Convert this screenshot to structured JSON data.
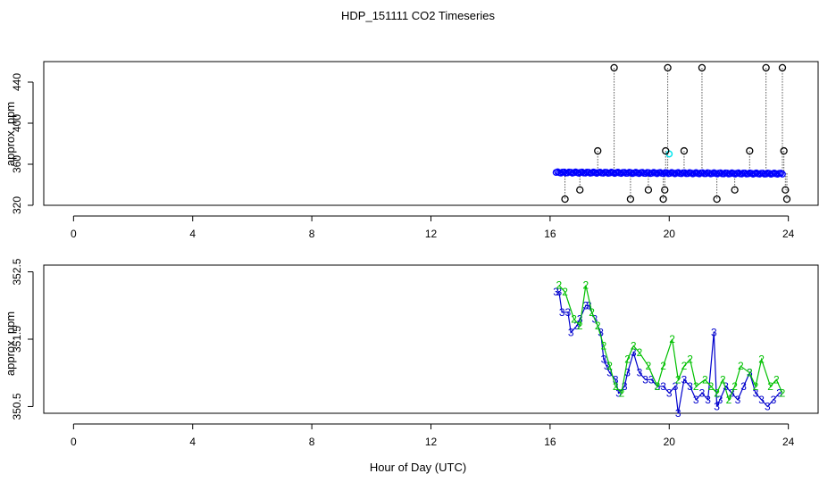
{
  "title": "HDP_151111  CO2 Timeseries",
  "xlabel": "Hour of Day (UTC)",
  "chart_data": [
    {
      "type": "scatter",
      "ylabel": "approx. ppm",
      "xlim": [
        -1,
        25
      ],
      "ylim": [
        320,
        460
      ],
      "x_ticks": [
        0,
        4,
        8,
        12,
        16,
        20,
        24
      ],
      "y_ticks": [
        320,
        360,
        400,
        440
      ],
      "colors": {
        "main": "#0000ff",
        "highlight": "#00e5ee",
        "outlier": "#000000",
        "outlier_line": "#000000"
      },
      "main_series": {
        "x_start": 16.2,
        "x_end": 23.8,
        "y_start": 352,
        "y_end": 350.8
      },
      "outliers": [
        {
          "x": 16.5,
          "y": 326
        },
        {
          "x": 17.0,
          "y": 335
        },
        {
          "x": 17.6,
          "y": 373
        },
        {
          "x": 18.15,
          "y": 454
        },
        {
          "x": 18.7,
          "y": 326
        },
        {
          "x": 19.3,
          "y": 335
        },
        {
          "x": 19.8,
          "y": 326
        },
        {
          "x": 19.85,
          "y": 335
        },
        {
          "x": 19.88,
          "y": 373
        },
        {
          "x": 19.95,
          "y": 454
        },
        {
          "x": 20.5,
          "y": 373
        },
        {
          "x": 21.1,
          "y": 454
        },
        {
          "x": 21.6,
          "y": 326
        },
        {
          "x": 22.2,
          "y": 335
        },
        {
          "x": 22.7,
          "y": 373
        },
        {
          "x": 23.25,
          "y": 454
        },
        {
          "x": 23.8,
          "y": 454
        },
        {
          "x": 23.85,
          "y": 373
        },
        {
          "x": 23.9,
          "y": 335
        },
        {
          "x": 23.95,
          "y": 326
        }
      ],
      "highlight_points": [
        {
          "x": 20.0,
          "y": 370
        }
      ]
    },
    {
      "type": "line",
      "ylabel": "approx. ppm",
      "xlim": [
        -1,
        25
      ],
      "ylim": [
        350.4,
        352.6
      ],
      "x_ticks": [
        0,
        4,
        8,
        12,
        16,
        20,
        24
      ],
      "y_ticks": [
        350.5,
        351.5,
        352.5
      ],
      "series": [
        {
          "marker": "3",
          "color": "#0000cd",
          "points": [
            [
              16.2,
              352.2
            ],
            [
              16.3,
              352.2
            ],
            [
              16.4,
              351.9
            ],
            [
              16.6,
              351.9
            ],
            [
              16.7,
              351.6
            ],
            [
              16.9,
              351.7
            ],
            [
              17.0,
              351.8
            ],
            [
              17.2,
              352.0
            ],
            [
              17.3,
              352.0
            ],
            [
              17.5,
              351.8
            ],
            [
              17.7,
              351.6
            ],
            [
              17.8,
              351.2
            ],
            [
              17.9,
              351.1
            ],
            [
              18.0,
              351.0
            ],
            [
              18.2,
              350.9
            ],
            [
              18.3,
              350.7
            ],
            [
              18.5,
              350.8
            ],
            [
              18.6,
              351.0
            ],
            [
              18.8,
              351.3
            ],
            [
              19.0,
              351.0
            ],
            [
              19.2,
              350.9
            ],
            [
              19.4,
              350.9
            ],
            [
              19.6,
              350.8
            ],
            [
              19.8,
              350.8
            ],
            [
              20.0,
              350.7
            ],
            [
              20.2,
              350.8
            ],
            [
              20.3,
              350.4
            ],
            [
              20.5,
              350.9
            ],
            [
              20.7,
              350.8
            ],
            [
              20.9,
              350.6
            ],
            [
              21.1,
              350.7
            ],
            [
              21.3,
              350.6
            ],
            [
              21.5,
              351.6
            ],
            [
              21.6,
              350.5
            ],
            [
              21.7,
              350.6
            ],
            [
              21.9,
              350.8
            ],
            [
              22.1,
              350.7
            ],
            [
              22.3,
              350.6
            ],
            [
              22.5,
              350.8
            ],
            [
              22.7,
              351.0
            ],
            [
              22.9,
              350.7
            ],
            [
              23.1,
              350.6
            ],
            [
              23.3,
              350.5
            ],
            [
              23.5,
              350.6
            ],
            [
              23.7,
              350.7
            ]
          ]
        },
        {
          "marker": "2",
          "color": "#00c000",
          "points": [
            [
              16.3,
              352.3
            ],
            [
              16.5,
              352.2
            ],
            [
              16.8,
              351.8
            ],
            [
              17.0,
              351.7
            ],
            [
              17.2,
              352.3
            ],
            [
              17.4,
              351.9
            ],
            [
              17.6,
              351.7
            ],
            [
              17.8,
              351.4
            ],
            [
              18.0,
              351.1
            ],
            [
              18.2,
              350.8
            ],
            [
              18.4,
              350.7
            ],
            [
              18.6,
              351.2
            ],
            [
              18.8,
              351.4
            ],
            [
              19.0,
              351.3
            ],
            [
              19.3,
              351.1
            ],
            [
              19.6,
              350.8
            ],
            [
              19.8,
              351.1
            ],
            [
              20.1,
              351.5
            ],
            [
              20.3,
              350.9
            ],
            [
              20.5,
              351.1
            ],
            [
              20.7,
              351.2
            ],
            [
              20.9,
              350.8
            ],
            [
              21.2,
              350.9
            ],
            [
              21.4,
              350.8
            ],
            [
              21.6,
              350.7
            ],
            [
              21.8,
              350.9
            ],
            [
              22.0,
              350.6
            ],
            [
              22.2,
              350.8
            ],
            [
              22.4,
              351.1
            ],
            [
              22.7,
              351.0
            ],
            [
              22.9,
              350.8
            ],
            [
              23.1,
              351.2
            ],
            [
              23.4,
              350.8
            ],
            [
              23.6,
              350.9
            ],
            [
              23.8,
              350.7
            ]
          ]
        }
      ]
    }
  ]
}
